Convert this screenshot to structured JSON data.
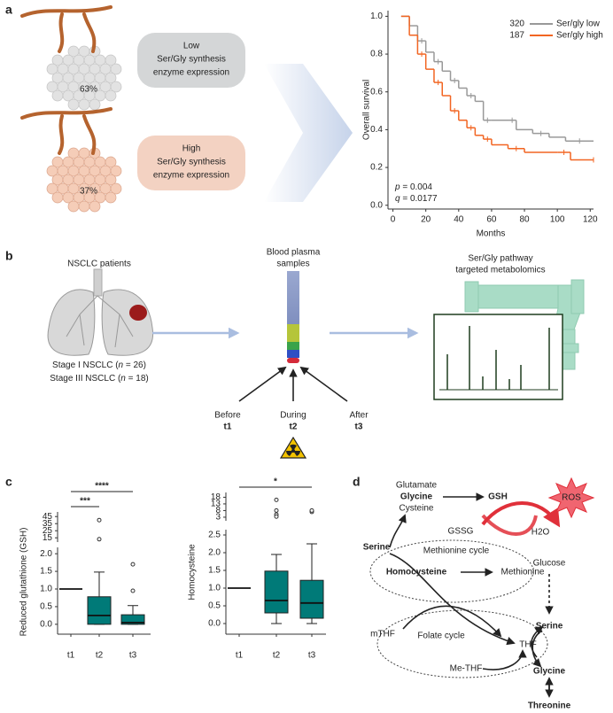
{
  "panel_labels": [
    "a",
    "b",
    "c",
    "d"
  ],
  "panel_a": {
    "tumors": [
      {
        "percent": "63%",
        "lines": [
          "Low",
          "Ser/Gly synthesis",
          "enzyme expression"
        ]
      },
      {
        "percent": "37%",
        "lines": [
          "High",
          "Ser/Gly synthesis",
          "enzyme expression"
        ]
      }
    ]
  },
  "panel_b": {
    "patients": "NSCLC patients",
    "stages": [
      [
        "Stage I NSCLC (",
        "n",
        " = 26)"
      ],
      [
        "Stage III NSCLC (",
        "n",
        " = 18)"
      ]
    ],
    "plasma": [
      "Blood plasma",
      "samples"
    ],
    "metabolomics": [
      "Ser/Gly pathway",
      "targeted metabolomics"
    ],
    "timepoints": [
      {
        "label": "Before",
        "code": "t1"
      },
      {
        "label": "During",
        "code": "t2"
      },
      {
        "label": "After",
        "code": "t3"
      }
    ]
  },
  "panel_d": {
    "nodes": [
      "Glutamate",
      "Glycine",
      "Cysteine",
      "GSH",
      "ROS",
      "GSSG",
      "H2O",
      "Serine",
      "Methionine cycle",
      "Homocysteine",
      "Methionine",
      "Glucose",
      "Serine",
      "mTHF",
      "Folate cycle",
      "THF",
      "Me-THF",
      "Glycine",
      "Threonine"
    ]
  },
  "chart_data": [
    {
      "type": "line",
      "xlabel": "Months",
      "ylabel": "Overall survival",
      "xlim": [
        -3,
        122
      ],
      "ylim": [
        -0.02,
        1.03
      ],
      "xticks": [
        0,
        20,
        40,
        60,
        80,
        100,
        120
      ],
      "yticks": [
        {
          "value": 0,
          "label": "0.0"
        },
        0.2,
        0.4,
        0.6,
        0.8,
        {
          "value": 1,
          "label": "1.0"
        }
      ],
      "series": [
        {
          "name": "Ser/gly low",
          "count": 320,
          "color": "#999999",
          "x": [
            5,
            10,
            15,
            20,
            25,
            30,
            35,
            40,
            45,
            50,
            55,
            60,
            70,
            75,
            85,
            95,
            105,
            122
          ],
          "values": [
            1,
            0.95,
            0.87,
            0.81,
            0.76,
            0.71,
            0.66,
            0.62,
            0.58,
            0.55,
            0.45,
            0.45,
            0.45,
            0.4,
            0.38,
            0.36,
            0.34,
            0.34
          ]
        },
        {
          "name": "Ser/gly high",
          "count": 187,
          "color": "#f26522",
          "x": [
            5,
            10,
            15,
            20,
            25,
            30,
            35,
            40,
            45,
            50,
            55,
            60,
            70,
            80,
            100,
            108,
            122
          ],
          "values": [
            1,
            0.9,
            0.8,
            0.72,
            0.65,
            0.58,
            0.5,
            0.45,
            0.41,
            0.37,
            0.35,
            0.32,
            0.3,
            0.28,
            0.28,
            0.24,
            0.24
          ]
        }
      ],
      "annotations": [
        {
          "var": "p",
          "text": " = 0.004"
        },
        {
          "var": "q",
          "text": " = 0.0177"
        }
      ]
    },
    {
      "type": "box",
      "ylabel": "Reduced glutathione (GSH)",
      "color": "#007a78",
      "categories": [
        "t1",
        "t2",
        "t3"
      ],
      "ylim": [
        -0.28,
        2.18
      ],
      "yticks": [
        {
          "value": 0,
          "label": "0.0"
        },
        0.5,
        {
          "value": 1,
          "label": "1.0"
        },
        1.5,
        {
          "value": 2,
          "label": "2.0"
        }
      ],
      "ylim_upper": [
        9,
        51.5
      ],
      "yticks_upper": [
        15,
        25,
        35,
        45
      ],
      "boxes": [
        {
          "whisker_low": 1,
          "q1": 1,
          "median": 1,
          "q3": 1,
          "whisker_high": 1,
          "outliers": []
        },
        {
          "whisker_low": 0,
          "q1": 0,
          "median": 0.25,
          "q3": 0.78,
          "whisker_high": 1.48,
          "outliers": [
            40,
            13
          ]
        },
        {
          "whisker_low": 0,
          "q1": 0,
          "median": 0.05,
          "q3": 0.27,
          "whisker_high": 0.53,
          "outliers": [
            0.95,
            1.7
          ]
        }
      ],
      "significance": [
        {
          "from": "t1",
          "to": "t3",
          "label": "****"
        },
        {
          "from": "t1",
          "to": "t2",
          "label": "***"
        }
      ]
    },
    {
      "type": "box",
      "ylabel": "Homocysteine",
      "color": "#007a78",
      "categories": [
        "t1",
        "t2",
        "t3"
      ],
      "ylim": [
        -0.3,
        2.65
      ],
      "yticks": [
        {
          "value": 0,
          "label": "0.0"
        },
        0.5,
        {
          "value": 1,
          "label": "1.0"
        },
        1.5,
        {
          "value": 2,
          "label": "2.0"
        },
        2.5
      ],
      "ylim_upper": [
        0.3,
        21.6
      ],
      "yticks_upper": [
        3,
        8,
        13,
        18
      ],
      "boxes": [
        {
          "whisker_low": 1,
          "q1": 1,
          "median": 1,
          "q3": 1,
          "whisker_high": 1,
          "outliers": []
        },
        {
          "whisker_low": 0,
          "q1": 0.3,
          "median": 0.65,
          "q3": 1.48,
          "whisker_high": 1.95,
          "outliers": [
            16,
            8,
            5,
            3.5
          ]
        },
        {
          "whisker_low": 0,
          "q1": 0.15,
          "median": 0.58,
          "q3": 1.22,
          "whisker_high": 2.25,
          "outliers": [
            7,
            8
          ]
        }
      ],
      "significance": [
        {
          "from": "t1",
          "to": "t3",
          "label": "*"
        }
      ]
    }
  ]
}
